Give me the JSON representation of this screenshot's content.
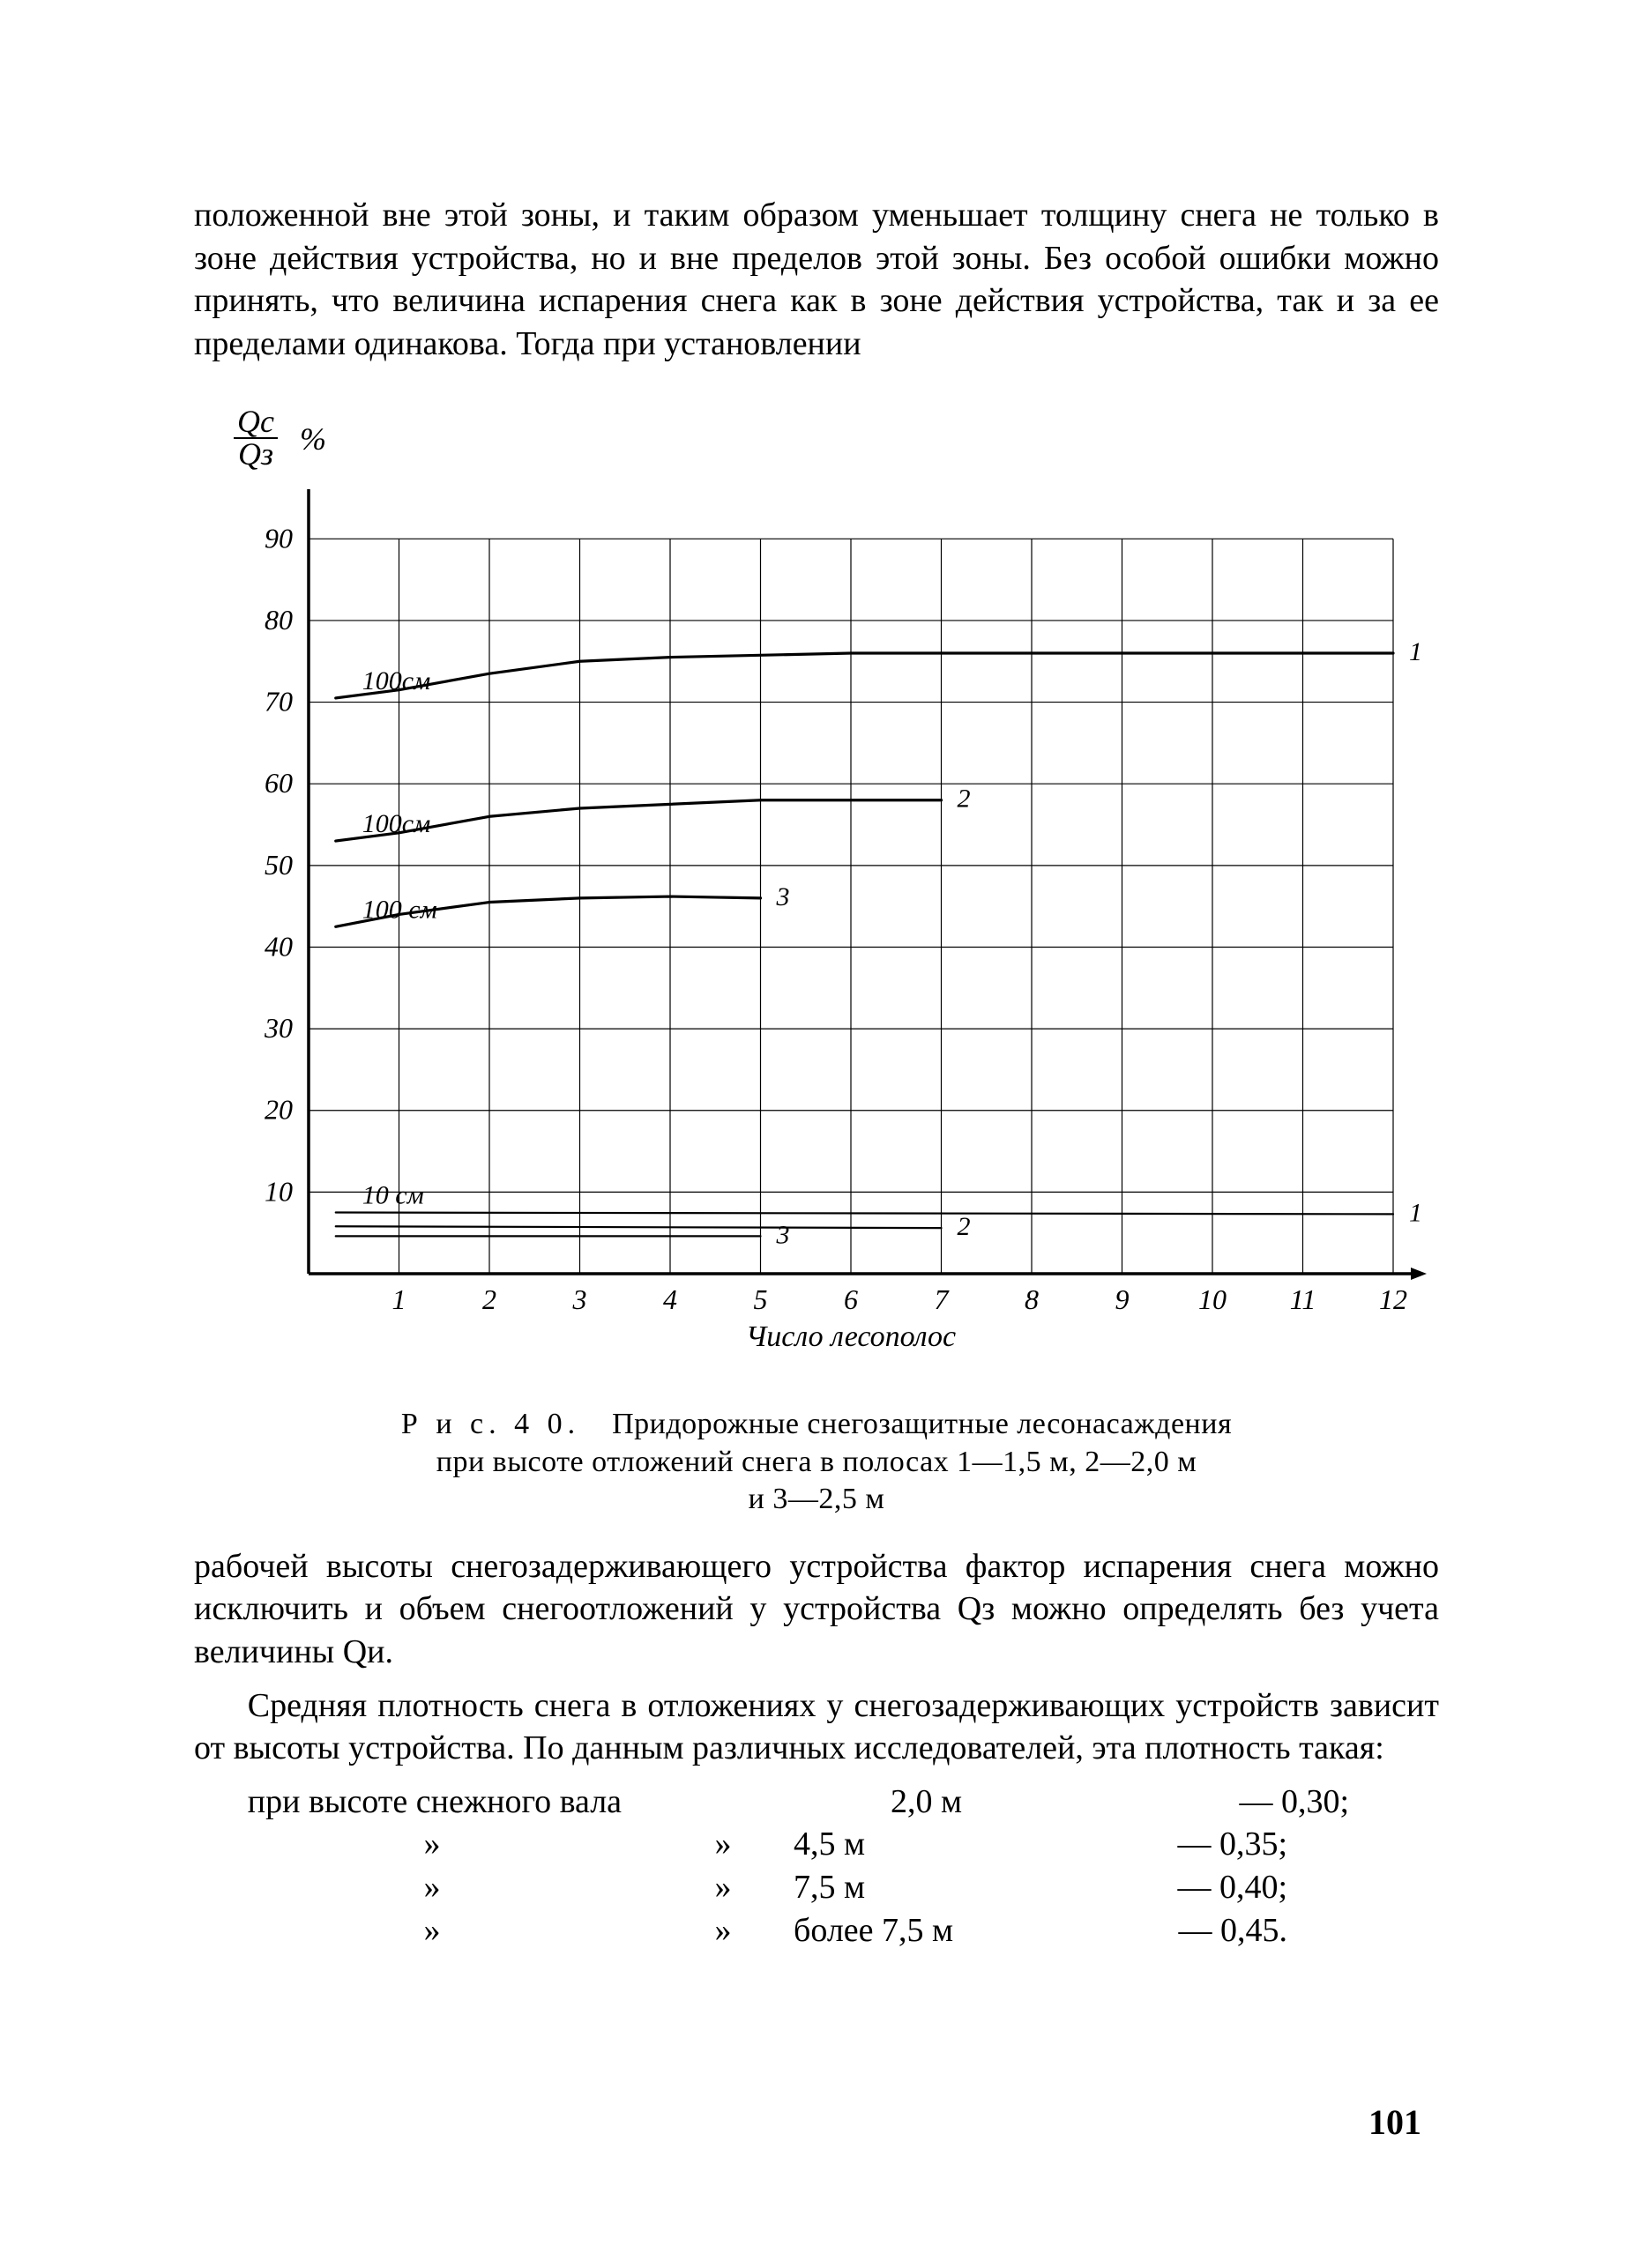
{
  "text": {
    "para1": "положенной вне этой зоны, и таким образом уменьшает толщину снега не только в зоне действия устройства, но и вне пределов этой зоны. Без особой ошибки можно принять, что величина испарения снега как в зоне действия устройства, так и за ее пределами одинакова. Тогда при установлении",
    "caption_prefix": "Р и с.  4 0.",
    "caption_line1": "Придорожные снегозащитные лесонасаждения",
    "caption_line2": "при высоте отложений снега в полосах 1—1,5 м, 2—2,0 м",
    "caption_line3": "и 3—2,5 м",
    "para2": "рабочей высоты снегозадерживающего устройства фактор испарения снега можно исключить и объем снегоотложений у устройства Qз можно определять без учета величины Qи.",
    "para3": "Средняя плотность снега в отложениях у снегозадерживающих устройств зависит от высоты устройства. По данным различных исследователей, эта плотность такая:",
    "density_intro": "при высоте снежного вала 2,0 м",
    "page_num": "101"
  },
  "chart": {
    "type": "line",
    "y_axis_title_top": "Qс",
    "y_axis_title_bottom": "Qз",
    "y_axis_percent": "%",
    "x_axis_title": "Число  лесополос",
    "xlim": [
      0,
      12
    ],
    "ylim": [
      0,
      95
    ],
    "xticks": [
      1,
      2,
      3,
      4,
      5,
      6,
      7,
      8,
      9,
      10,
      11,
      12
    ],
    "yticks": [
      10,
      20,
      30,
      40,
      50,
      60,
      70,
      80,
      90
    ],
    "grid_color": "#000000",
    "grid_width": 1.2,
    "axis_width": 3.5,
    "background_color": "#ffffff",
    "text_color": "#000000",
    "tick_fontsize": 32,
    "label_fontsize": 34,
    "curve_label_fontsize": 30,
    "series_upper": [
      {
        "id": "1",
        "label_end": "1",
        "label_start": "100см",
        "color": "#000000",
        "width": 3.2,
        "points": [
          {
            "x": 0.3,
            "y": 70.5
          },
          {
            "x": 1,
            "y": 71.5
          },
          {
            "x": 2,
            "y": 73.5
          },
          {
            "x": 3,
            "y": 75
          },
          {
            "x": 4,
            "y": 75.5
          },
          {
            "x": 6,
            "y": 76
          },
          {
            "x": 8,
            "y": 76
          },
          {
            "x": 10,
            "y": 76
          },
          {
            "x": 12,
            "y": 76
          }
        ]
      },
      {
        "id": "2",
        "label_end": "2",
        "label_start": "100см",
        "color": "#000000",
        "width": 3.2,
        "points": [
          {
            "x": 0.3,
            "y": 53
          },
          {
            "x": 1,
            "y": 54
          },
          {
            "x": 2,
            "y": 56
          },
          {
            "x": 3,
            "y": 57
          },
          {
            "x": 4,
            "y": 57.5
          },
          {
            "x": 5,
            "y": 58
          },
          {
            "x": 6,
            "y": 58
          },
          {
            "x": 7,
            "y": 58
          }
        ]
      },
      {
        "id": "3",
        "label_end": "3",
        "label_start": "100 см",
        "color": "#000000",
        "width": 3.2,
        "points": [
          {
            "x": 0.3,
            "y": 42.5
          },
          {
            "x": 1,
            "y": 44
          },
          {
            "x": 2,
            "y": 45.5
          },
          {
            "x": 3,
            "y": 46
          },
          {
            "x": 4,
            "y": 46.2
          },
          {
            "x": 5,
            "y": 46
          }
        ]
      }
    ],
    "series_lower": [
      {
        "id": "1b",
        "label_end": "1",
        "label_start": "10 см",
        "color": "#000000",
        "width": 2.2,
        "points": [
          {
            "x": 0.3,
            "y": 7.5
          },
          {
            "x": 12,
            "y": 7.3
          }
        ]
      },
      {
        "id": "2b",
        "label_end": "2",
        "color": "#000000",
        "width": 2.2,
        "points": [
          {
            "x": 0.3,
            "y": 5.8
          },
          {
            "x": 7,
            "y": 5.6
          }
        ]
      },
      {
        "id": "3b",
        "label_end": "3",
        "color": "#000000",
        "width": 2.2,
        "points": [
          {
            "x": 0.3,
            "y": 4.6
          },
          {
            "x": 5,
            "y": 4.6
          }
        ]
      }
    ]
  },
  "density": {
    "rows": [
      {
        "c1": "при высоте снежного вала",
        "c2": "",
        "c3": "2,0 м",
        "val": "— 0,30;"
      },
      {
        "c1": "»",
        "c2": "»",
        "c3": "4,5 м",
        "val": "— 0,35;"
      },
      {
        "c1": "»",
        "c2": "»",
        "c3": "7,5 м",
        "val": "— 0,40;"
      },
      {
        "c1": "»",
        "c2": "»",
        "c3": "более 7,5 м",
        "val": "— 0,45."
      }
    ]
  }
}
